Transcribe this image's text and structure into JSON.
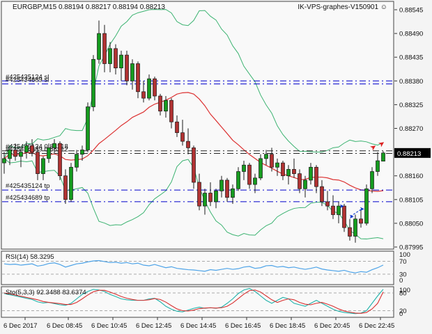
{
  "header": {
    "symbol_line": "EURGBP,M15  0.88194 0.88217 0.88194 0.88213",
    "watermark": "IK-VPS-graphes-V150901 ☺"
  },
  "colors": {
    "bull": "#169b1f",
    "bear": "#b03232",
    "wick": "#1a1a1a",
    "band": "#3cb371",
    "ma": "#dc3232",
    "rsi": "#4da3e8",
    "sto_main": "#20b2aa",
    "sto_signal": "#d83030",
    "order_blue": "#0000cc",
    "order_dark": "#222222",
    "bid_bg": "#000000",
    "bid_fg": "#ffffff",
    "level": "#aaaaaa",
    "panel": "#f9f9f9",
    "border": "#444444"
  },
  "price_axis": {
    "labels": [
      "0.88545",
      "0.88490",
      "0.88435",
      "0.88380",
      "0.88325",
      "0.88270",
      "0.88160",
      "0.88105",
      "0.88050",
      "0.87995"
    ],
    "current": "0.88213"
  },
  "order_lines": [
    {
      "label": "#425435124 sl",
      "price": 0.8838,
      "color": "blue"
    },
    {
      "label": "#425434689 sl",
      "price": 0.88373,
      "color": "blue"
    },
    {
      "label": "#425435124 0.88218",
      "price": 0.88218,
      "color": "dark"
    },
    {
      "label": "#425434689 0.88212",
      "price": 0.88212,
      "color": "dark"
    },
    {
      "label": "#425435124 tp",
      "price": 0.88127,
      "color": "blue"
    },
    {
      "label": "#425434689 tp",
      "price": 0.881,
      "color": "blue"
    }
  ],
  "markers": {
    "red_arrows": [
      {
        "x": 534,
        "y": 217
      },
      {
        "x": 546,
        "y": 212
      }
    ],
    "blue_arrows": [
      {
        "x": 487,
        "y": 299
      },
      {
        "x": 501,
        "y": 314
      },
      {
        "x": 516,
        "y": 303
      }
    ],
    "blue_dash_segment": {
      "x1": 503,
      "y1": 311,
      "x2": 518,
      "y2": 301
    }
  },
  "indicator_panels": {
    "rsi_label": "RSI(14) 58.3295",
    "rsi_scale": [
      "100",
      "70",
      "30",
      "0"
    ],
    "sto_label": "Sto(5,3,3) 92.3488 83.6374",
    "sto_scale": [
      "100",
      "80",
      "20",
      "0"
    ]
  },
  "chart_data": {
    "type": "candlestick",
    "title": "EURGBP,M15",
    "timeframe": "M15",
    "last_ohlc": {
      "open": "0.88194",
      "high": "0.88217",
      "low": "0.88194",
      "close": "0.88213"
    },
    "ylim": [
      0.87995,
      0.88545
    ],
    "x_labels": [
      "6 Dec 2017",
      "6 Dec 08:45",
      "6 Dec 10:45",
      "6 Dec 12:45",
      "6 Dec 14:45",
      "6 Dec 16:45",
      "6 Dec 18:45",
      "6 Dec 20:45",
      "6 Dec 22:45"
    ],
    "overlays": [
      {
        "name": "Bollinger Bands",
        "period": 20,
        "deviation": 2
      }
    ],
    "ohlc": [
      [
        0.8819,
        0.88215,
        0.88165,
        0.882
      ],
      [
        0.882,
        0.8823,
        0.88185,
        0.8822
      ],
      [
        0.8822,
        0.88235,
        0.88195,
        0.88205
      ],
      [
        0.88205,
        0.88225,
        0.8818,
        0.88215
      ],
      [
        0.88215,
        0.8824,
        0.882,
        0.8823
      ],
      [
        0.8823,
        0.88245,
        0.88205,
        0.88215
      ],
      [
        0.88215,
        0.8823,
        0.8815,
        0.88165
      ],
      [
        0.88165,
        0.88205,
        0.8815,
        0.882
      ],
      [
        0.882,
        0.88235,
        0.8819,
        0.88225
      ],
      [
        0.88225,
        0.88245,
        0.8821,
        0.88235
      ],
      [
        0.88235,
        0.8824,
        0.8815,
        0.8816
      ],
      [
        0.8816,
        0.88175,
        0.88095,
        0.88105
      ],
      [
        0.88105,
        0.8819,
        0.881,
        0.8818
      ],
      [
        0.8818,
        0.8822,
        0.8817,
        0.8821
      ],
      [
        0.8821,
        0.8823,
        0.88195,
        0.8822
      ],
      [
        0.8822,
        0.8833,
        0.88215,
        0.8832
      ],
      [
        0.8832,
        0.8844,
        0.8831,
        0.8843
      ],
      [
        0.8843,
        0.8852,
        0.8842,
        0.8849
      ],
      [
        0.8849,
        0.8851,
        0.884,
        0.8842
      ],
      [
        0.8842,
        0.8847,
        0.884,
        0.88455
      ],
      [
        0.88455,
        0.88465,
        0.88395,
        0.8841
      ],
      [
        0.8841,
        0.8845,
        0.8838,
        0.8844
      ],
      [
        0.8844,
        0.8845,
        0.8837,
        0.8838
      ],
      [
        0.8838,
        0.8843,
        0.8836,
        0.8842
      ],
      [
        0.8842,
        0.88425,
        0.8834,
        0.88355
      ],
      [
        0.88355,
        0.8838,
        0.8833,
        0.8834
      ],
      [
        0.8834,
        0.88395,
        0.88335,
        0.88385
      ],
      [
        0.88385,
        0.8839,
        0.88335,
        0.88345
      ],
      [
        0.88345,
        0.8835,
        0.883,
        0.8831
      ],
      [
        0.8831,
        0.88345,
        0.88295,
        0.88335
      ],
      [
        0.88335,
        0.8834,
        0.8827,
        0.88285
      ],
      [
        0.88285,
        0.883,
        0.8825,
        0.8826
      ],
      [
        0.8826,
        0.8829,
        0.8823,
        0.8824
      ],
      [
        0.8824,
        0.8827,
        0.8821,
        0.88225
      ],
      [
        0.88225,
        0.8823,
        0.8813,
        0.88145
      ],
      [
        0.88145,
        0.88165,
        0.8808,
        0.8809
      ],
      [
        0.8809,
        0.8813,
        0.8807,
        0.8812
      ],
      [
        0.8812,
        0.88145,
        0.8809,
        0.881
      ],
      [
        0.881,
        0.8813,
        0.88085,
        0.88125
      ],
      [
        0.88125,
        0.8816,
        0.8811,
        0.8815
      ],
      [
        0.8815,
        0.88155,
        0.881,
        0.8811
      ],
      [
        0.8811,
        0.8814,
        0.88095,
        0.8813
      ],
      [
        0.8813,
        0.8818,
        0.88125,
        0.8817
      ],
      [
        0.8817,
        0.88195,
        0.8815,
        0.88185
      ],
      [
        0.88185,
        0.8819,
        0.8813,
        0.8814
      ],
      [
        0.8814,
        0.88165,
        0.8812,
        0.88155
      ],
      [
        0.88155,
        0.8821,
        0.8815,
        0.882
      ],
      [
        0.882,
        0.8822,
        0.88185,
        0.8821
      ],
      [
        0.8821,
        0.88225,
        0.8817,
        0.8818
      ],
      [
        0.8818,
        0.882,
        0.8816,
        0.8819
      ],
      [
        0.8819,
        0.88195,
        0.8815,
        0.8816
      ],
      [
        0.8816,
        0.88185,
        0.8814,
        0.88175
      ],
      [
        0.88175,
        0.882,
        0.88155,
        0.88165
      ],
      [
        0.88165,
        0.88175,
        0.8812,
        0.8813
      ],
      [
        0.8813,
        0.8816,
        0.8811,
        0.8815
      ],
      [
        0.8815,
        0.8819,
        0.8814,
        0.8818
      ],
      [
        0.8818,
        0.88185,
        0.8812,
        0.88135
      ],
      [
        0.88135,
        0.8815,
        0.8809,
        0.881
      ],
      [
        0.881,
        0.88125,
        0.8808,
        0.8809
      ],
      [
        0.8809,
        0.88115,
        0.8806,
        0.8807
      ],
      [
        0.8807,
        0.881,
        0.8805,
        0.8809
      ],
      [
        0.8809,
        0.88095,
        0.8803,
        0.8804
      ],
      [
        0.8804,
        0.8806,
        0.8801,
        0.8802
      ],
      [
        0.8802,
        0.8807,
        0.88005,
        0.8806
      ],
      [
        0.8806,
        0.8808,
        0.8804,
        0.8805
      ],
      [
        0.8805,
        0.8814,
        0.88045,
        0.8813
      ],
      [
        0.8813,
        0.8818,
        0.8812,
        0.8817
      ],
      [
        0.8817,
        0.88215,
        0.8816,
        0.88195
      ],
      [
        0.88194,
        0.88217,
        0.88194,
        0.88213
      ]
    ],
    "rsi": {
      "name": "RSI(14)",
      "value": 58.3295,
      "levels": [
        70,
        30
      ],
      "range": [
        0,
        100
      ],
      "values": [
        62,
        60,
        61,
        58,
        60,
        62,
        55,
        58,
        63,
        65,
        60,
        52,
        57,
        62,
        64,
        68,
        71,
        72,
        69,
        66,
        67,
        64,
        66,
        62,
        64,
        58,
        56,
        60,
        55,
        50,
        53,
        48,
        46,
        44,
        43,
        41,
        39,
        44,
        42,
        45,
        48,
        45,
        47,
        52,
        54,
        48,
        50,
        56,
        57,
        52,
        54,
        50,
        52,
        48,
        45,
        48,
        52,
        46,
        43,
        41,
        39,
        42,
        37,
        34,
        38,
        36,
        44,
        50,
        58.3
      ]
    },
    "stochastic": {
      "name": "Sto(5,3,3)",
      "main_value": 92.3488,
      "signal_value": 83.6374,
      "levels": [
        80,
        20
      ],
      "range": [
        0,
        100
      ],
      "main": [
        78,
        74,
        70,
        66,
        62,
        58,
        50,
        46,
        48,
        44,
        40,
        38,
        45,
        60,
        75,
        85,
        92,
        90,
        85,
        75,
        68,
        60,
        57,
        55,
        55,
        55,
        60,
        62,
        50,
        35,
        25,
        18,
        16,
        22,
        28,
        32,
        28,
        30,
        28,
        32,
        45,
        60,
        78,
        90,
        95,
        85,
        70,
        55,
        45,
        55,
        65,
        60,
        45,
        40,
        35,
        45,
        55,
        45,
        35,
        25,
        18,
        14,
        12,
        10,
        12,
        20,
        45,
        70,
        92.3
      ],
      "signal": [
        80,
        77,
        73,
        69,
        65,
        61,
        57,
        51,
        48,
        46,
        44,
        41,
        41,
        48,
        60,
        73,
        84,
        89,
        89,
        83,
        76,
        68,
        62,
        58,
        55,
        55,
        57,
        61,
        58,
        49,
        37,
        26,
        20,
        19,
        22,
        27,
        29,
        30,
        29,
        30,
        35,
        46,
        61,
        76,
        88,
        90,
        83,
        70,
        57,
        48,
        55,
        60,
        57,
        48,
        42,
        40,
        45,
        48,
        42,
        35,
        26,
        19,
        15,
        12,
        11,
        14,
        26,
        45,
        83.6
      ]
    }
  }
}
